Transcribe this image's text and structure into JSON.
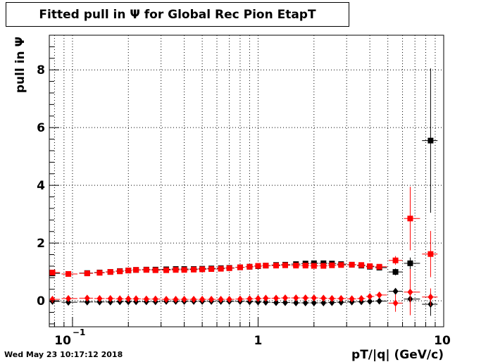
{
  "chart_data": {
    "type": "scatter",
    "title": "Fitted pull in  Ψ  for Global Rec Pion EtapT",
    "xlabel": "pT/|q| (GeV/c)",
    "ylabel": "pull in  Ψ",
    "x_scale": "log",
    "xlim": [
      0.075,
      10
    ],
    "ylim": [
      -0.9,
      9.2
    ],
    "grid": true,
    "x_tick_labels": [
      "10",
      "−1",
      "1",
      "10"
    ],
    "y_ticks": [
      0,
      2,
      4,
      6,
      8
    ],
    "series": [
      {
        "marker": "square",
        "color": "#000000",
        "x": [
          0.078,
          0.095,
          0.12,
          0.14,
          0.16,
          0.18,
          0.2,
          0.22,
          0.25,
          0.28,
          0.32,
          0.36,
          0.4,
          0.45,
          0.5,
          0.56,
          0.63,
          0.7,
          0.8,
          0.9,
          1.0,
          1.1,
          1.25,
          1.4,
          1.6,
          1.8,
          2.0,
          2.25,
          2.5,
          2.8,
          3.2,
          3.6,
          4.0,
          4.5,
          5.5,
          6.6,
          8.5
        ],
        "y": [
          0.95,
          0.93,
          0.96,
          0.98,
          1.0,
          1.03,
          1.05,
          1.07,
          1.08,
          1.08,
          1.09,
          1.1,
          1.1,
          1.1,
          1.11,
          1.12,
          1.13,
          1.14,
          1.16,
          1.18,
          1.2,
          1.22,
          1.24,
          1.25,
          1.27,
          1.29,
          1.3,
          1.3,
          1.29,
          1.27,
          1.25,
          1.22,
          1.18,
          1.15,
          1.0,
          1.3,
          5.55
        ],
        "yerr": [
          0.04,
          0.03,
          0.03,
          0.02,
          0.02,
          0.02,
          0.02,
          0.02,
          0.02,
          0.02,
          0.02,
          0.02,
          0.02,
          0.02,
          0.02,
          0.02,
          0.02,
          0.02,
          0.02,
          0.02,
          0.02,
          0.02,
          0.02,
          0.02,
          0.02,
          0.03,
          0.03,
          0.03,
          0.04,
          0.05,
          0.05,
          0.06,
          0.07,
          0.09,
          0.12,
          0.2,
          2.5
        ]
      },
      {
        "marker": "square",
        "color": "#ff0000",
        "x": [
          0.078,
          0.095,
          0.12,
          0.14,
          0.16,
          0.18,
          0.2,
          0.22,
          0.25,
          0.28,
          0.32,
          0.36,
          0.4,
          0.45,
          0.5,
          0.56,
          0.63,
          0.7,
          0.8,
          0.9,
          1.0,
          1.1,
          1.25,
          1.4,
          1.6,
          1.8,
          2.0,
          2.25,
          2.5,
          2.8,
          3.2,
          3.6,
          4.0,
          4.5,
          5.5,
          6.6,
          8.5
        ],
        "y": [
          0.98,
          0.93,
          0.95,
          0.97,
          1.0,
          1.02,
          1.05,
          1.07,
          1.07,
          1.06,
          1.06,
          1.07,
          1.07,
          1.08,
          1.09,
          1.1,
          1.11,
          1.13,
          1.16,
          1.18,
          1.21,
          1.22,
          1.22,
          1.23,
          1.22,
          1.22,
          1.21,
          1.21,
          1.23,
          1.24,
          1.25,
          1.24,
          1.2,
          1.18,
          1.4,
          2.85,
          1.62
        ],
        "yerr": [
          0.04,
          0.03,
          0.03,
          0.02,
          0.02,
          0.02,
          0.02,
          0.02,
          0.02,
          0.02,
          0.02,
          0.02,
          0.02,
          0.02,
          0.02,
          0.02,
          0.02,
          0.02,
          0.02,
          0.02,
          0.02,
          0.02,
          0.02,
          0.02,
          0.02,
          0.03,
          0.03,
          0.03,
          0.04,
          0.05,
          0.05,
          0.06,
          0.07,
          0.09,
          0.15,
          1.1,
          0.8
        ]
      },
      {
        "marker": "diamond",
        "color": "#000000",
        "x": [
          0.078,
          0.095,
          0.12,
          0.14,
          0.16,
          0.18,
          0.2,
          0.22,
          0.25,
          0.28,
          0.32,
          0.36,
          0.4,
          0.45,
          0.5,
          0.56,
          0.63,
          0.7,
          0.8,
          0.9,
          1.0,
          1.1,
          1.25,
          1.4,
          1.6,
          1.8,
          2.0,
          2.25,
          2.5,
          2.8,
          3.2,
          3.6,
          4.0,
          4.5,
          5.5,
          6.6,
          8.5
        ],
        "y": [
          -0.02,
          -0.05,
          -0.04,
          -0.04,
          -0.04,
          -0.03,
          -0.03,
          -0.03,
          -0.03,
          -0.03,
          -0.02,
          -0.02,
          -0.02,
          -0.02,
          -0.02,
          -0.02,
          -0.02,
          -0.02,
          -0.02,
          -0.03,
          -0.04,
          -0.05,
          -0.06,
          -0.06,
          -0.07,
          -0.07,
          -0.07,
          -0.07,
          -0.06,
          -0.05,
          -0.04,
          -0.03,
          -0.02,
          -0.01,
          0.33,
          0.06,
          -0.12
        ],
        "yerr": [
          0.03,
          0.02,
          0.02,
          0.02,
          0.02,
          0.02,
          0.02,
          0.02,
          0.02,
          0.02,
          0.02,
          0.02,
          0.02,
          0.02,
          0.02,
          0.02,
          0.02,
          0.02,
          0.02,
          0.02,
          0.02,
          0.02,
          0.02,
          0.02,
          0.02,
          0.02,
          0.02,
          0.02,
          0.03,
          0.03,
          0.04,
          0.04,
          0.05,
          0.06,
          0.09,
          0.15,
          0.4
        ]
      },
      {
        "marker": "diamond",
        "color": "#ff0000",
        "x": [
          0.078,
          0.095,
          0.12,
          0.14,
          0.16,
          0.18,
          0.2,
          0.22,
          0.25,
          0.28,
          0.32,
          0.36,
          0.4,
          0.45,
          0.5,
          0.56,
          0.63,
          0.7,
          0.8,
          0.9,
          1.0,
          1.1,
          1.25,
          1.4,
          1.6,
          1.8,
          2.0,
          2.25,
          2.5,
          2.8,
          3.2,
          3.6,
          4.0,
          4.5,
          5.5,
          6.6,
          8.5
        ],
        "y": [
          0.05,
          0.08,
          0.09,
          0.08,
          0.08,
          0.07,
          0.07,
          0.07,
          0.06,
          0.06,
          0.05,
          0.05,
          0.05,
          0.05,
          0.05,
          0.05,
          0.05,
          0.05,
          0.06,
          0.07,
          0.08,
          0.09,
          0.09,
          0.1,
          0.1,
          0.1,
          0.1,
          0.09,
          0.08,
          0.08,
          0.07,
          0.08,
          0.15,
          0.2,
          -0.08,
          0.3,
          0.13
        ],
        "yerr": [
          0.03,
          0.02,
          0.02,
          0.02,
          0.02,
          0.02,
          0.02,
          0.02,
          0.02,
          0.02,
          0.02,
          0.02,
          0.02,
          0.02,
          0.02,
          0.02,
          0.02,
          0.02,
          0.02,
          0.02,
          0.02,
          0.02,
          0.02,
          0.02,
          0.02,
          0.02,
          0.02,
          0.02,
          0.03,
          0.03,
          0.04,
          0.04,
          0.05,
          0.06,
          0.3,
          0.8,
          0.3
        ]
      }
    ]
  },
  "footer": {
    "timestamp": "Wed May 23 10:17:12 2018"
  }
}
